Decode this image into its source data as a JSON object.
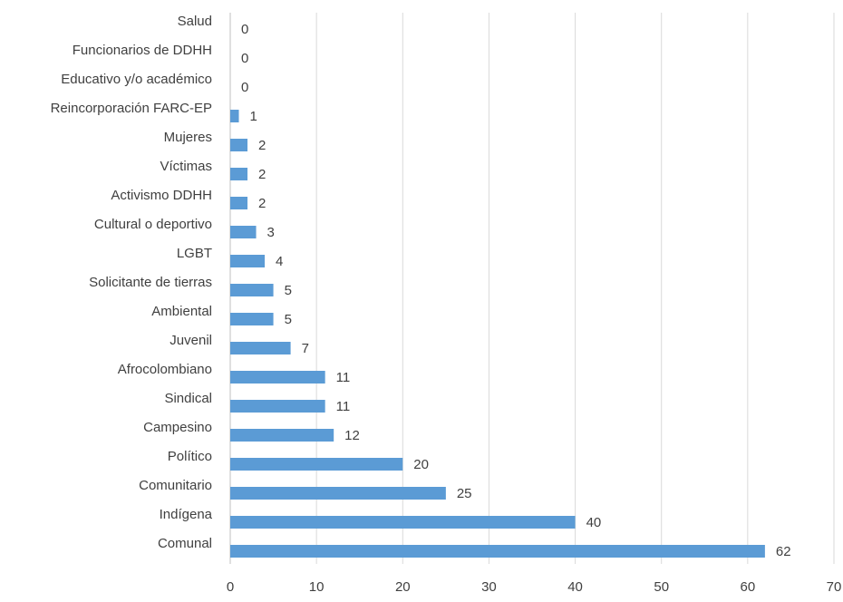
{
  "chart_data": {
    "type": "bar",
    "orientation": "horizontal",
    "title": "",
    "xlabel": "",
    "ylabel": "",
    "categories": [
      "Salud",
      "Funcionarios de DDHH",
      "Educativo y/o académico",
      "Reincorporación FARC-EP",
      "Mujeres",
      "Víctimas",
      "Activismo DDHH",
      "Cultural o deportivo",
      "LGBT",
      "Solicitante de tierras",
      "Ambiental",
      "Juvenil",
      "Afrocolombiano",
      "Sindical",
      "Campesino",
      "Político",
      "Comunitario",
      "Indígena",
      "Comunal"
    ],
    "values": [
      0,
      0,
      0,
      1,
      2,
      2,
      2,
      3,
      4,
      5,
      5,
      7,
      11,
      11,
      12,
      20,
      25,
      40,
      62
    ],
    "xlim": [
      0,
      70
    ],
    "xticks": [
      "0",
      "10",
      "20",
      "30",
      "40",
      "50",
      "60",
      "70"
    ],
    "grid": true,
    "legend": "none",
    "colors": {
      "bar": "#5b9bd5",
      "grid": "#d9d9d9",
      "text": "#404040"
    }
  }
}
